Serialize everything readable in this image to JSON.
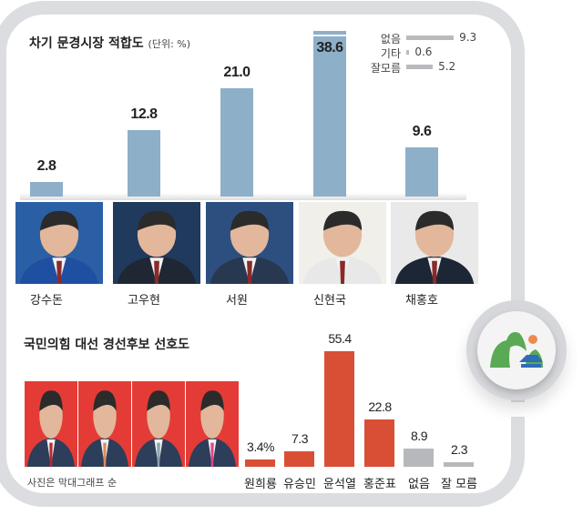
{
  "chart_data": [
    {
      "type": "bar",
      "title": "차기 문경시장 적합도",
      "unit_note": "(단위: %)",
      "categories": [
        "강수돈",
        "고우현",
        "서원",
        "신현국",
        "채홍호"
      ],
      "values": [
        2.8,
        12.8,
        21.0,
        38.6,
        9.6
      ],
      "value_labels": [
        "2.8",
        "12.8",
        "21.0",
        "38.6",
        "9.6"
      ],
      "bar_color": "#8eafc8",
      "legend_extra": [
        {
          "label": "없음",
          "value": 9.3,
          "text": "9.3"
        },
        {
          "label": "기타",
          "value": 0.6,
          "text": "0.6"
        },
        {
          "label": "잘모름",
          "value": 5.2,
          "text": "5.2"
        }
      ],
      "extra_color": "#b9babd"
    },
    {
      "type": "bar",
      "title": "국민의힘 대선 경선후보 선호도",
      "categories": [
        "원희룡",
        "유승민",
        "윤석열",
        "홍준표",
        "없음",
        "잘 모름"
      ],
      "values": [
        3.4,
        7.3,
        55.4,
        22.8,
        8.9,
        2.3
      ],
      "value_labels": [
        "3.4%",
        "7.3",
        "55.4",
        "22.8",
        "8.9",
        "2.3"
      ],
      "colors": [
        "#d94f35",
        "#d94f35",
        "#d94f35",
        "#d94f35",
        "#b7b8bb",
        "#b7b8bb"
      ],
      "note": "사진은 막대그래프 순"
    }
  ],
  "logo": {
    "green": "#5aa955",
    "blue": "#2f6db5",
    "orange": "#ee8a4e"
  }
}
